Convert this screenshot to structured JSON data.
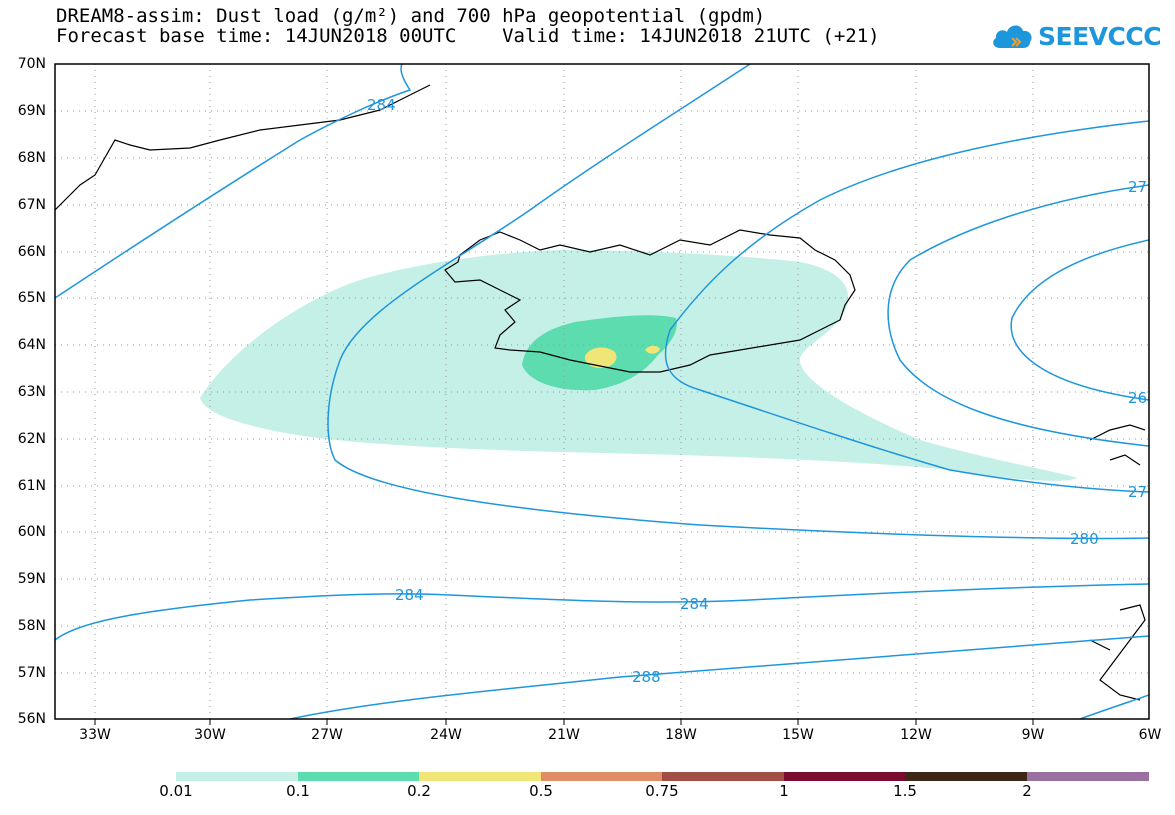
{
  "title_line1": "DREAM8-assim: Dust load (g/m²) and 700 hPa geopotential (gpdm)",
  "title_line2": "Forecast base time: 14JUN2018 00UTC    Valid time: 14JUN2018 21UTC (+21)",
  "logo": {
    "text": "SEEVCCC",
    "icon": "cloud-icon",
    "color": "#1e96dc"
  },
  "map": {
    "lon_range": [
      -34.3,
      -6
    ],
    "lat_range": [
      56,
      70
    ],
    "lat_labels": [
      "70N",
      "69N",
      "68N",
      "67N",
      "66N",
      "65N",
      "64N",
      "63N",
      "62N",
      "61N",
      "60N",
      "59N",
      "58N",
      "57N",
      "56N"
    ],
    "lon_labels": [
      "33W",
      "30W",
      "27W",
      "24W",
      "21W",
      "18W",
      "15W",
      "12W",
      "9W",
      "6W"
    ],
    "contour_color": "#1e96dc",
    "contour_labels": [
      {
        "text": "284",
        "lon": -25.1,
        "lat": 69.1
      },
      {
        "text": "27",
        "lon": -6.4,
        "lat": 67.4
      },
      {
        "text": "26",
        "lon": -6.4,
        "lat": 62.9
      },
      {
        "text": "27",
        "lon": -6.4,
        "lat": 60.9
      },
      {
        "text": "280",
        "lon": -7.9,
        "lat": 59.9
      },
      {
        "text": "284",
        "lon": -25.0,
        "lat": 58.7
      },
      {
        "text": "284",
        "lon": -17.7,
        "lat": 58.5
      },
      {
        "text": "288",
        "lon": -19.7,
        "lat": 57.0
      }
    ]
  },
  "colorbar": {
    "labels": [
      "0.01",
      "0.1",
      "0.2",
      "0.5",
      "0.75",
      "1",
      "1.5",
      "2"
    ],
    "colors": [
      "#c5f0e8",
      "#5ddcb0",
      "#f0e678",
      "#e08c64",
      "#a04e46",
      "#7a0c2e",
      "#3c2814",
      "#9a70a0"
    ]
  }
}
